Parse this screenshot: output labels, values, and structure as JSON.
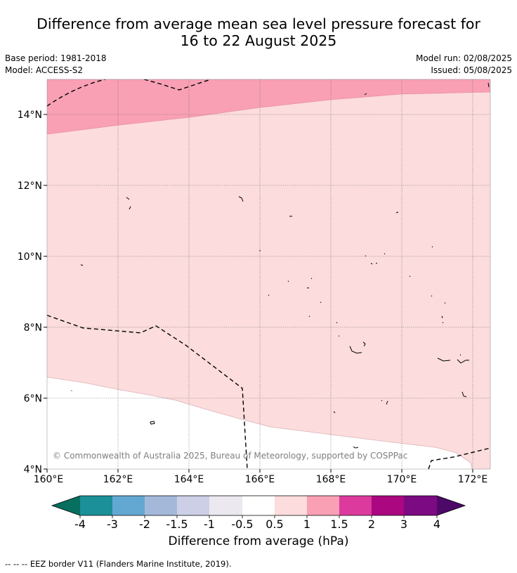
{
  "header": {
    "title_line1": "Difference from average mean sea level pressure forecast for",
    "title_line2": "16 to 22 August 2025",
    "base_period": "Base period: 1981-2018",
    "model": "Model: ACCESS-S2",
    "model_run": "Model run: 02/08/2025",
    "issued": "Issued: 05/08/2025"
  },
  "map": {
    "lat_labels": [
      "14°N",
      "12°N",
      "10°N",
      "8°N",
      "6°N",
      "4°N"
    ],
    "lon_labels": [
      "160°E",
      "162°E",
      "164°E",
      "166°E",
      "168°E",
      "170°E",
      "172°E"
    ],
    "copyright": "© Commonwealth of Australia 2025, Bureau of Meteorology, supported by COSPPac",
    "colors": {
      "band_0p5_1": "#fcdcdc",
      "band_1_1p5": "#f9a0b5",
      "band_m0p5_0p5": "#ffffff"
    }
  },
  "colorbar": {
    "ticks": [
      "-4",
      "-3",
      "-2",
      "-1.5",
      "-1",
      "-0.5",
      "0.5",
      "1",
      "1.5",
      "2",
      "3",
      "4"
    ],
    "colors": [
      "#066f5f",
      "#1b9098",
      "#63a8d2",
      "#a4b9da",
      "#cdcfe6",
      "#ebe8ef",
      "#ffffff",
      "#fcdcdc",
      "#f9a0b5",
      "#dc3a9c",
      "#ab0780",
      "#7c0a82",
      "#4e0868"
    ],
    "label": "Difference from average (hPa)"
  },
  "legend": {
    "footnote": "--  --  -- EEZ border V11 (Flanders Marine Institute, 2019)."
  }
}
